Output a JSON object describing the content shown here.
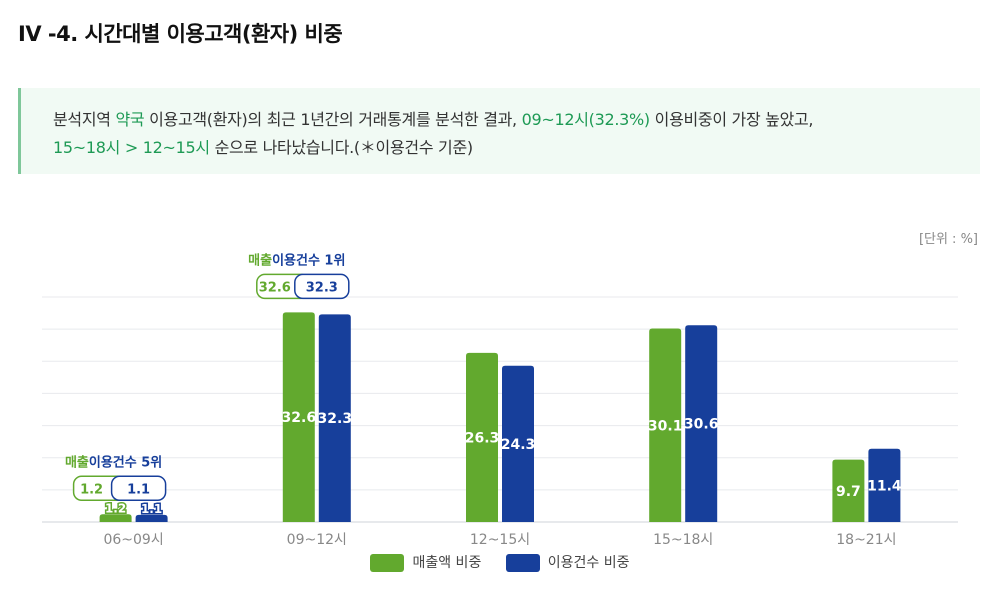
{
  "title": "IV -4. 시간대별 이용고객(환자) 비중",
  "summary": {
    "line1": [
      {
        "text": "분석지역 ",
        "hl": false
      },
      {
        "text": "약국",
        "hl": true
      },
      {
        "text": " 이용고객(환자)의 최근 1년간의 거래통계를 분석한 결과, ",
        "hl": false
      },
      {
        "text": "09~12시(32.3%)",
        "hl": true
      },
      {
        "text": " 이용비중이 가장 높았고,",
        "hl": false
      }
    ],
    "line2": [
      {
        "text": "15~18시 > 12~15시",
        "hl": true
      },
      {
        "text": " 순으로 나타났습니다.(＊이용건수 기준)",
        "hl": false
      }
    ]
  },
  "unit_label": "[단위 : %]",
  "colors": {
    "sales": "#62a92e",
    "count": "#173f9b",
    "highlight": "#1e9a55"
  },
  "chart_data": {
    "type": "bar",
    "categories": [
      "06~09시",
      "09~12시",
      "12~15시",
      "15~18시",
      "18~21시"
    ],
    "series": [
      {
        "name": "매출액 비중",
        "values": [
          1.2,
          32.6,
          26.3,
          30.1,
          9.7
        ]
      },
      {
        "name": "이용건수 비중",
        "values": [
          1.1,
          32.3,
          24.3,
          30.6,
          11.4
        ]
      }
    ],
    "ylim": [
      0,
      35
    ],
    "grid": true,
    "legend": "bottom",
    "annotations": [
      {
        "category_index": 0,
        "text_sales": "매출",
        "text_count": "이용건수 5위",
        "sales_value": "1.2",
        "count_value": "1.1"
      },
      {
        "category_index": 1,
        "text_sales": "매출",
        "text_count": "이용건수 1위",
        "sales_value": "32.6",
        "count_value": "32.3"
      }
    ]
  }
}
